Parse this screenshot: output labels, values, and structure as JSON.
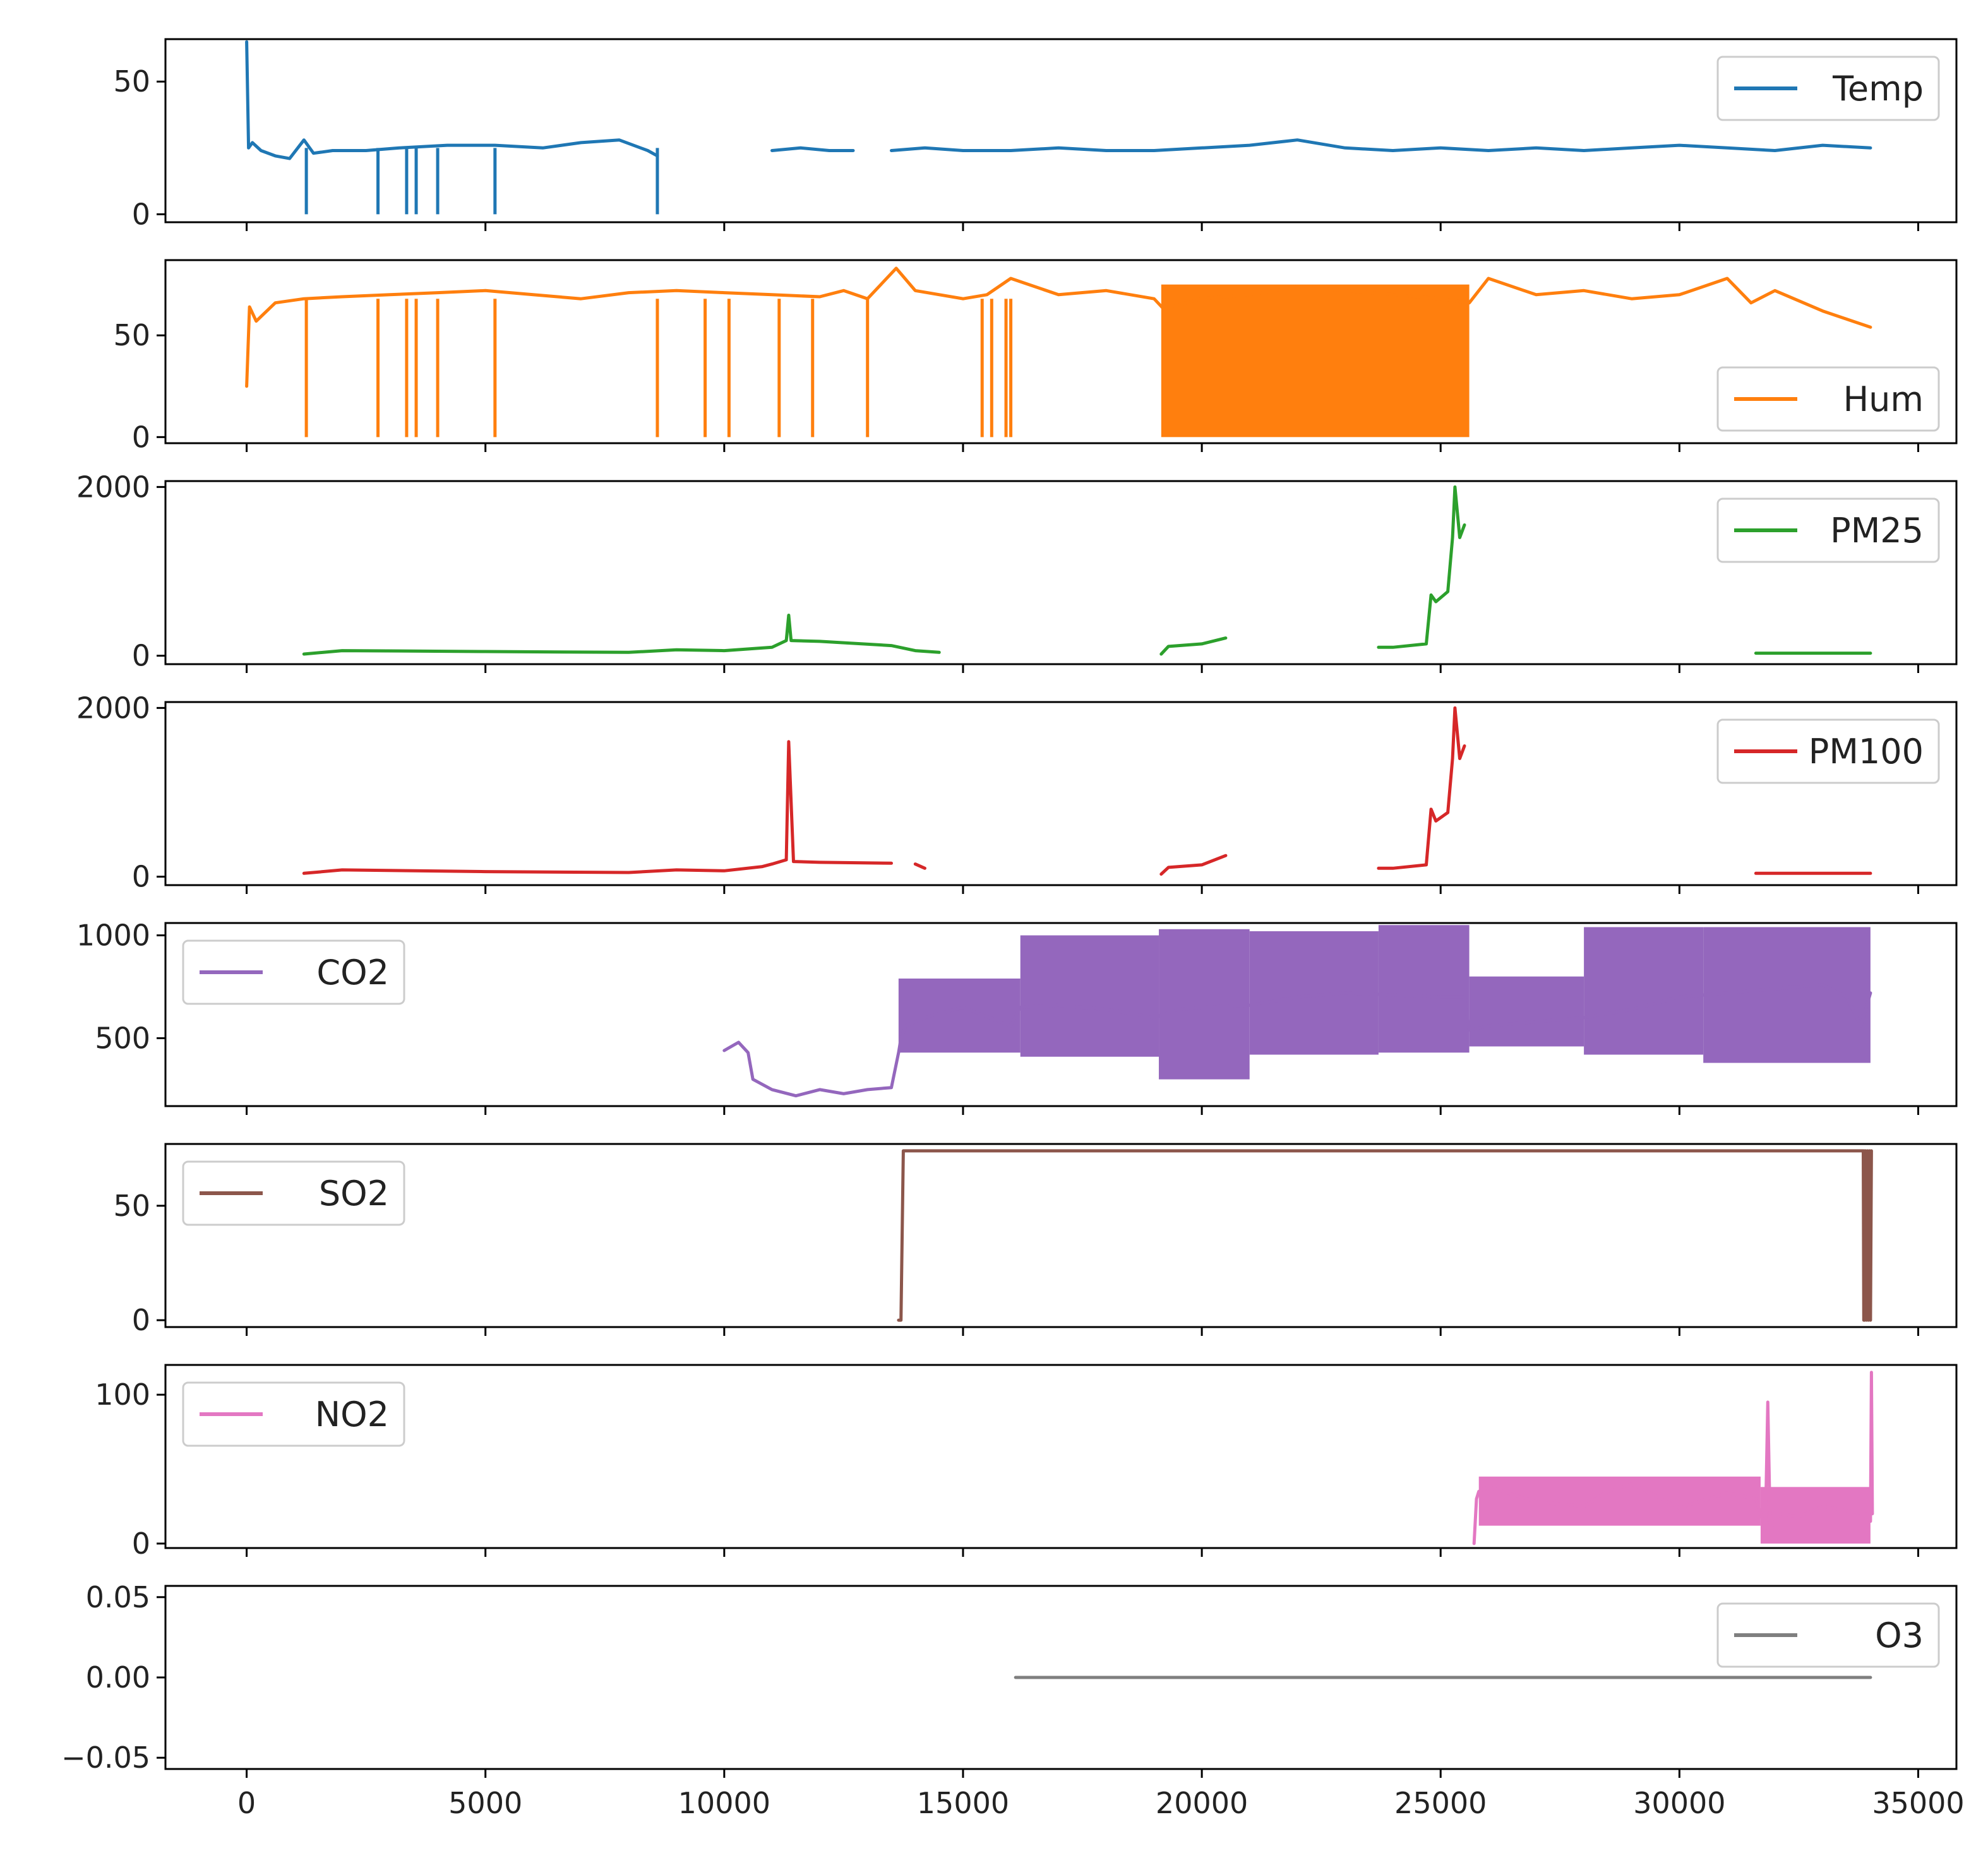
{
  "chart_data": {
    "type": "line",
    "layout": "stacked-subplots-shared-x",
    "x_axis": {
      "range": [
        -1700,
        35800
      ],
      "ticks": [
        0,
        5000,
        10000,
        15000,
        20000,
        25000,
        30000,
        35000
      ],
      "tick_labels": [
        "0",
        "5000",
        "10000",
        "15000",
        "20000",
        "25000",
        "30000",
        "35000"
      ]
    },
    "panels": [
      {
        "name": "Temp",
        "color": "#1f77b4",
        "ylim": [
          -3,
          66
        ],
        "yticks": [
          0,
          50
        ],
        "ytick_labels": [
          "0",
          "50"
        ],
        "legend_loc": "upper-right",
        "segments": [
          {
            "x": [
              0,
              40,
              120,
              300,
              600,
              900,
              1200,
              1400,
              1800,
              2500,
              3200,
              4200,
              5200,
              6200,
              7000,
              7800,
              8400,
              8600
            ],
            "y": [
              65,
              25,
              27,
              24,
              22,
              21,
              28,
              23,
              24,
              24,
              25,
              26,
              26,
              25,
              27,
              28,
              24,
              22
            ]
          },
          {
            "x": [
              11000,
              11600,
              12200,
              12700
            ],
            "y": [
              24,
              25,
              24,
              24
            ]
          },
          {
            "x": [
              13500,
              14200,
              15000,
              16000,
              17000,
              18000,
              19000,
              20000,
              21000,
              22000,
              23000,
              24000,
              25000,
              26000,
              27000,
              28000,
              29000,
              30000,
              31000,
              32000,
              33000,
              34000
            ],
            "y": [
              24,
              25,
              24,
              24,
              25,
              24,
              24,
              25,
              26,
              28,
              25,
              24,
              25,
              24,
              25,
              24,
              25,
              26,
              25,
              24,
              26,
              25
            ]
          }
        ],
        "drops": [
          {
            "x": 1250,
            "y": 0
          },
          {
            "x": 2750,
            "y": 0
          },
          {
            "x": 3350,
            "y": 0
          },
          {
            "x": 3550,
            "y": 0
          },
          {
            "x": 4000,
            "y": 0
          },
          {
            "x": 5200,
            "y": 0
          },
          {
            "x": 8600,
            "y": 0
          }
        ]
      },
      {
        "name": "Hum",
        "color": "#ff7f0e",
        "ylim": [
          -3,
          87
        ],
        "yticks": [
          0,
          50
        ],
        "ytick_labels": [
          "0",
          "50"
        ],
        "legend_loc": "lower-right",
        "segments": [
          {
            "x": [
              0,
              60,
              200,
              600,
              1200,
              2000,
              3000,
              4000,
              5000,
              6000,
              7000,
              8000,
              9000,
              10000,
              11000,
              12000,
              12500,
              13000,
              13600,
              14000,
              15000,
              15500,
              16000,
              17000,
              18000,
              19000,
              19200,
              20000,
              21000,
              22000,
              23000,
              24000,
              25000,
              25600,
              26000,
              27000,
              28000,
              29000,
              30000,
              31000,
              31500,
              32000,
              33000,
              34000
            ],
            "y": [
              25,
              64,
              57,
              66,
              68,
              69,
              70,
              71,
              72,
              70,
              68,
              71,
              72,
              71,
              70,
              69,
              72,
              68,
              83,
              72,
              68,
              70,
              78,
              70,
              72,
              68,
              63,
              68,
              70,
              74,
              72,
              70,
              68,
              66,
              78,
              70,
              72,
              68,
              70,
              78,
              66,
              72,
              62,
              54
            ]
          }
        ],
        "drops": [
          {
            "x": 1250,
            "y": 0
          },
          {
            "x": 2750,
            "y": 0
          },
          {
            "x": 3350,
            "y": 0
          },
          {
            "x": 3550,
            "y": 0
          },
          {
            "x": 4000,
            "y": 0
          },
          {
            "x": 5200,
            "y": 0
          },
          {
            "x": 8600,
            "y": 0
          },
          {
            "x": 9600,
            "y": 0
          },
          {
            "x": 10100,
            "y": 0
          },
          {
            "x": 11150,
            "y": 0
          },
          {
            "x": 11850,
            "y": 0
          },
          {
            "x": 13000,
            "y": 0
          },
          {
            "x": 15400,
            "y": 0
          },
          {
            "x": 15600,
            "y": 0
          },
          {
            "x": 15900,
            "y": 0
          },
          {
            "x": 16000,
            "y": 0
          }
        ],
        "bands": [
          {
            "x0": 19150,
            "x1": 25600,
            "y0": 0,
            "y1": 75
          }
        ]
      },
      {
        "name": "PM25",
        "color": "#2ca02c",
        "ylim": [
          -100,
          2070
        ],
        "yticks": [
          0,
          2000
        ],
        "ytick_labels": [
          "0",
          "2000"
        ],
        "legend_loc": "upper-right",
        "segments": [
          {
            "x": [
              1200,
              2000,
              5000,
              8000,
              9000,
              10000,
              11000,
              11300,
              11350,
              11400,
              12000,
              13500,
              14000,
              14500
            ],
            "y": [
              20,
              60,
              50,
              40,
              70,
              60,
              100,
              180,
              480,
              180,
              170,
              120,
              60,
              40
            ]
          },
          {
            "x": [
              19150,
              19300,
              20000,
              20500
            ],
            "y": [
              20,
              110,
              140,
              210
            ]
          },
          {
            "x": [
              23700,
              24000,
              24700,
              24800,
              24900,
              25150,
              25250,
              25300,
              25400,
              25500
            ],
            "y": [
              100,
              100,
              140,
              720,
              640,
              760,
              1400,
              2000,
              1400,
              1550
            ]
          },
          {
            "x": [
              31600,
              34000
            ],
            "y": [
              30,
              30
            ]
          }
        ]
      },
      {
        "name": "PM100",
        "color": "#d62728",
        "ylim": [
          -100,
          2070
        ],
        "yticks": [
          0,
          2000
        ],
        "ytick_labels": [
          "0",
          "2000"
        ],
        "legend_loc": "upper-right",
        "segments": [
          {
            "x": [
              1200,
              2000,
              5000,
              8000,
              9000,
              10000,
              10800,
              11000,
              11300,
              11350,
              11450,
              12000,
              13500
            ],
            "y": [
              40,
              80,
              60,
              50,
              80,
              70,
              120,
              150,
              200,
              1600,
              180,
              170,
              160
            ]
          },
          {
            "x": [
              14000,
              14200
            ],
            "y": [
              150,
              100
            ]
          },
          {
            "x": [
              19150,
              19300,
              20000,
              20500
            ],
            "y": [
              30,
              110,
              140,
              250
            ]
          },
          {
            "x": [
              23700,
              24000,
              24700,
              24800,
              24900,
              25150,
              25250,
              25300,
              25400,
              25500
            ],
            "y": [
              100,
              100,
              140,
              800,
              660,
              760,
              1400,
              2000,
              1400,
              1550
            ]
          },
          {
            "x": [
              31600,
              34000
            ],
            "y": [
              40,
              40
            ]
          }
        ]
      },
      {
        "name": "CO2",
        "color": "#9467bd",
        "ylim": [
          170,
          1060
        ],
        "yticks": [
          500,
          1000
        ],
        "ytick_labels": [
          "500",
          "1000"
        ],
        "legend_loc": "upper-left",
        "segments": [
          {
            "x": [
              10000,
              10300,
              10500,
              10600,
              11000,
              11500,
              12000,
              12500,
              13000,
              13500,
              13650,
              13700,
              13800,
              14200,
              14500,
              15000,
              16000,
              16200
            ],
            "y": [
              440,
              480,
              430,
              300,
              250,
              220,
              250,
              230,
              250,
              260,
              430,
              500,
              560,
              600,
              620,
              650,
              560,
              650
            ]
          },
          {
            "x": [
              16200,
              17000,
              18000,
              19000,
              19500,
              20000,
              21000,
              22000,
              23000,
              24000,
              25000,
              25500,
              25600,
              26000,
              27000,
              28000,
              29000,
              30000,
              31000,
              32000,
              33000,
              33500,
              33800,
              34000
            ],
            "y": [
              650,
              660,
              640,
              600,
              640,
              650,
              660,
              700,
              720,
              710,
              700,
              700,
              540,
              560,
              580,
              600,
              640,
              700,
              720,
              740,
              760,
              700,
              560,
              720
            ]
          }
        ],
        "bands": [
          {
            "x0": 13650,
            "x1": 16200,
            "y0": 430,
            "y1": 790
          },
          {
            "x0": 16200,
            "x1": 19100,
            "y0": 410,
            "y1": 1000
          },
          {
            "x0": 19100,
            "x1": 21000,
            "y0": 300,
            "y1": 1030
          },
          {
            "x0": 21000,
            "x1": 23700,
            "y0": 420,
            "y1": 1020
          },
          {
            "x0": 23700,
            "x1": 25600,
            "y0": 430,
            "y1": 1050
          },
          {
            "x0": 25600,
            "x1": 28000,
            "y0": 460,
            "y1": 800
          },
          {
            "x0": 28000,
            "x1": 30500,
            "y0": 420,
            "y1": 1040
          },
          {
            "x0": 30500,
            "x1": 34000,
            "y0": 380,
            "y1": 1040
          }
        ]
      },
      {
        "name": "SO2",
        "color": "#8c564b",
        "ylim": [
          -3,
          77
        ],
        "yticks": [
          0,
          50
        ],
        "ytick_labels": [
          "0",
          "50"
        ],
        "legend_loc": "upper-left",
        "segments": [
          {
            "x": [
              13650,
              13700,
              13750,
              33850,
              33860,
              33870,
              33880,
              33900,
              33920,
              33940,
              33960,
              33980,
              34000,
              34020
            ],
            "y": [
              0,
              0,
              74,
              74,
              0,
              74,
              0,
              74,
              0,
              74,
              0,
              74,
              0,
              74
            ]
          }
        ],
        "bands": [
          {
            "x0": 33830,
            "x1": 34030,
            "y0": 0,
            "y1": 74
          }
        ]
      },
      {
        "name": "NO2",
        "color": "#e377c2",
        "ylim": [
          -3,
          120
        ],
        "yticks": [
          0,
          100
        ],
        "ytick_labels": [
          "0",
          "100"
        ],
        "legend_loc": "upper-left",
        "segments": [
          {
            "x": [
              25700,
              25750,
              25800,
              26000,
              27000,
              28000,
              28500,
              29000,
              30000,
              31000,
              31600,
              31800,
              31850,
              31900,
              32100,
              32500,
              33000,
              33500,
              33900,
              34000,
              34020,
              34040
            ],
            "y": [
              0,
              30,
              35,
              38,
              28,
              25,
              35,
              40,
              24,
              34,
              30,
              10,
              95,
              10,
              20,
              18,
              25,
              22,
              20,
              15,
              115,
              20
            ]
          }
        ],
        "bands": [
          {
            "x0": 25800,
            "x1": 31700,
            "y0": 12,
            "y1": 45
          },
          {
            "x0": 31700,
            "x1": 34000,
            "y0": 0,
            "y1": 38
          }
        ]
      },
      {
        "name": "O3",
        "color": "#7f7f7f",
        "ylim": [
          -0.057,
          0.057
        ],
        "yticks": [
          -0.05,
          0,
          0.05
        ],
        "ytick_labels": [
          "−0.05",
          "0.00",
          "0.05"
        ],
        "legend_loc": "upper-right",
        "segments": [
          {
            "x": [
              16100,
              34000
            ],
            "y": [
              0,
              0
            ]
          }
        ]
      }
    ]
  }
}
